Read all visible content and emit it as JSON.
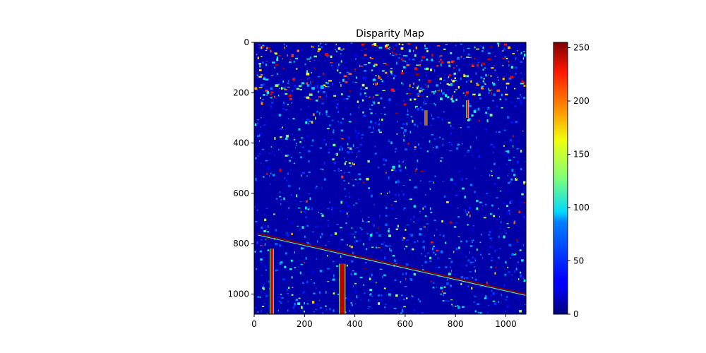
{
  "chart_data": {
    "type": "heatmap",
    "title": "Disparity Map",
    "xlabel": "",
    "ylabel": "",
    "x_range": [
      0,
      1080
    ],
    "y_range": [
      0,
      1080
    ],
    "y_inverted": true,
    "x_ticks": [
      0,
      200,
      400,
      600,
      800,
      1000
    ],
    "y_ticks": [
      0,
      200,
      400,
      600,
      800,
      1000
    ],
    "colormap": "jet",
    "value_range": [
      0,
      255
    ],
    "colorbar_ticks": [
      0,
      50,
      100,
      150,
      200,
      250
    ],
    "colorbar_placement": "right",
    "background_value": 10,
    "features": [
      {
        "name": "diagonal-edge",
        "x": [
          15,
          1080
        ],
        "y": [
          760,
          1000
        ],
        "value": 255
      },
      {
        "name": "left-post",
        "x": [
          65,
          75
        ],
        "y": [
          820,
          1080
        ],
        "value": 235
      },
      {
        "name": "center-post",
        "x": [
          340,
          360
        ],
        "y": [
          880,
          1080
        ],
        "value": 240
      },
      {
        "name": "upper-band-streak-1",
        "x": [
          680,
          685
        ],
        "y": [
          270,
          330
        ],
        "value": 230
      },
      {
        "name": "upper-band-streak-2",
        "x": [
          845,
          850
        ],
        "y": [
          230,
          300
        ],
        "value": 225
      }
    ]
  }
}
